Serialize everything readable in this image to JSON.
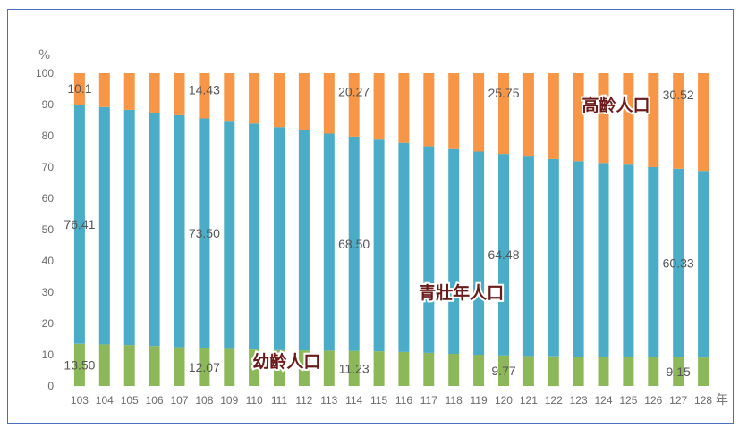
{
  "chart_data": {
    "type": "bar",
    "stacked": true,
    "y_unit": "%",
    "x_unit": "年",
    "ylim": [
      0,
      100
    ],
    "yticks": [
      0,
      10,
      20,
      30,
      40,
      50,
      60,
      70,
      80,
      90,
      100
    ],
    "grid": false,
    "categories": [
      "103",
      "104",
      "105",
      "106",
      "107",
      "108",
      "109",
      "110",
      "111",
      "112",
      "113",
      "114",
      "115",
      "116",
      "117",
      "118",
      "119",
      "120",
      "121",
      "122",
      "123",
      "124",
      "125",
      "126",
      "127",
      "128"
    ],
    "series": [
      {
        "name": "幼齡人口",
        "color": "#8db85a",
        "values": [
          13.5,
          13.3,
          13.1,
          12.8,
          12.4,
          12.07,
          11.9,
          11.7,
          11.5,
          11.4,
          11.3,
          11.23,
          11.1,
          10.9,
          10.6,
          10.3,
          10.0,
          9.77,
          9.6,
          9.5,
          9.4,
          9.35,
          9.3,
          9.2,
          9.15,
          9.1
        ]
      },
      {
        "name": "青壯年人口",
        "color": "#4aacc6",
        "values": [
          76.41,
          75.9,
          75.2,
          74.6,
          74.2,
          73.5,
          72.9,
          72.2,
          71.3,
          70.3,
          69.4,
          68.5,
          67.7,
          66.9,
          66.1,
          65.5,
          65.0,
          64.48,
          63.8,
          63.1,
          62.5,
          62.0,
          61.5,
          60.8,
          60.33,
          59.7
        ]
      },
      {
        "name": "高齡人口",
        "color": "#f79646",
        "values": [
          10.1,
          10.8,
          11.7,
          12.6,
          13.4,
          14.43,
          15.2,
          16.1,
          17.2,
          18.3,
          19.3,
          20.27,
          21.2,
          22.2,
          23.3,
          24.2,
          25.0,
          25.75,
          26.6,
          27.4,
          28.1,
          28.65,
          29.2,
          30.0,
          30.52,
          31.2
        ]
      }
    ],
    "data_labels": [
      {
        "series": 0,
        "index": 0,
        "text": "13.50"
      },
      {
        "series": 0,
        "index": 5,
        "text": "12.07"
      },
      {
        "series": 0,
        "index": 11,
        "text": "11.23"
      },
      {
        "series": 0,
        "index": 17,
        "text": "9.77"
      },
      {
        "series": 0,
        "index": 24,
        "text": "9.15"
      },
      {
        "series": 1,
        "index": 0,
        "text": "76.41"
      },
      {
        "series": 1,
        "index": 5,
        "text": "73.50"
      },
      {
        "series": 1,
        "index": 11,
        "text": "68.50"
      },
      {
        "series": 1,
        "index": 17,
        "text": "64.48"
      },
      {
        "series": 1,
        "index": 24,
        "text": "60.33"
      },
      {
        "series": 2,
        "index": 0,
        "text": "10.1"
      },
      {
        "series": 2,
        "index": 5,
        "text": "14.43"
      },
      {
        "series": 2,
        "index": 11,
        "text": "20.27"
      },
      {
        "series": 2,
        "index": 17,
        "text": "25.75"
      },
      {
        "series": 2,
        "index": 24,
        "text": "30.52"
      }
    ],
    "region_labels": [
      {
        "series": 0,
        "text": "幼齡人口"
      },
      {
        "series": 1,
        "text": "青壯年人口"
      },
      {
        "series": 2,
        "text": "高齡人口"
      }
    ]
  }
}
